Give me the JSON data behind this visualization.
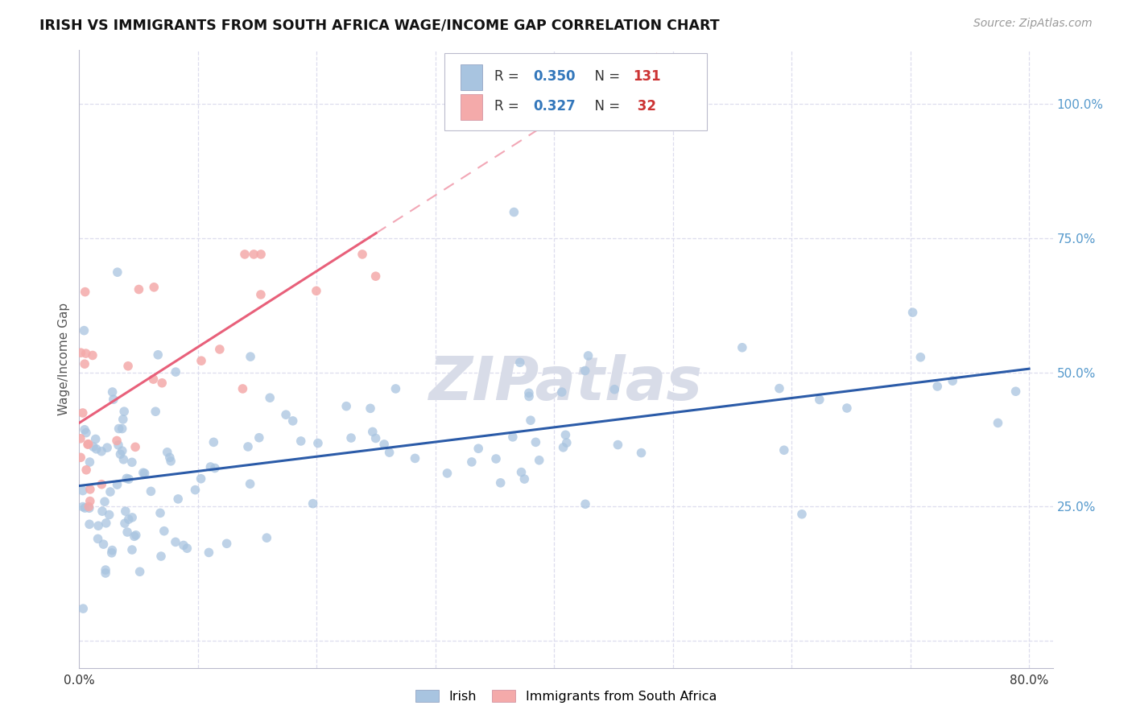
{
  "title": "IRISH VS IMMIGRANTS FROM SOUTH AFRICA WAGE/INCOME GAP CORRELATION CHART",
  "source": "Source: ZipAtlas.com",
  "ylabel": "Wage/Income Gap",
  "xlim": [
    0.0,
    0.82
  ],
  "ylim": [
    -0.05,
    1.1
  ],
  "yticks_right": [
    0.25,
    0.5,
    0.75,
    1.0
  ],
  "ytick_labels_right": [
    "25.0%",
    "50.0%",
    "75.0%",
    "100.0%"
  ],
  "irish_R": 0.35,
  "irish_N": 131,
  "sa_R": 0.327,
  "sa_N": 32,
  "blue_color": "#A8C4E0",
  "pink_color": "#F4AAAA",
  "blue_line_color": "#2B5BA8",
  "pink_line_color": "#E8607A",
  "watermark_color": "#D8DCE8",
  "background_color": "#FFFFFF",
  "grid_color": "#DDDDEE"
}
